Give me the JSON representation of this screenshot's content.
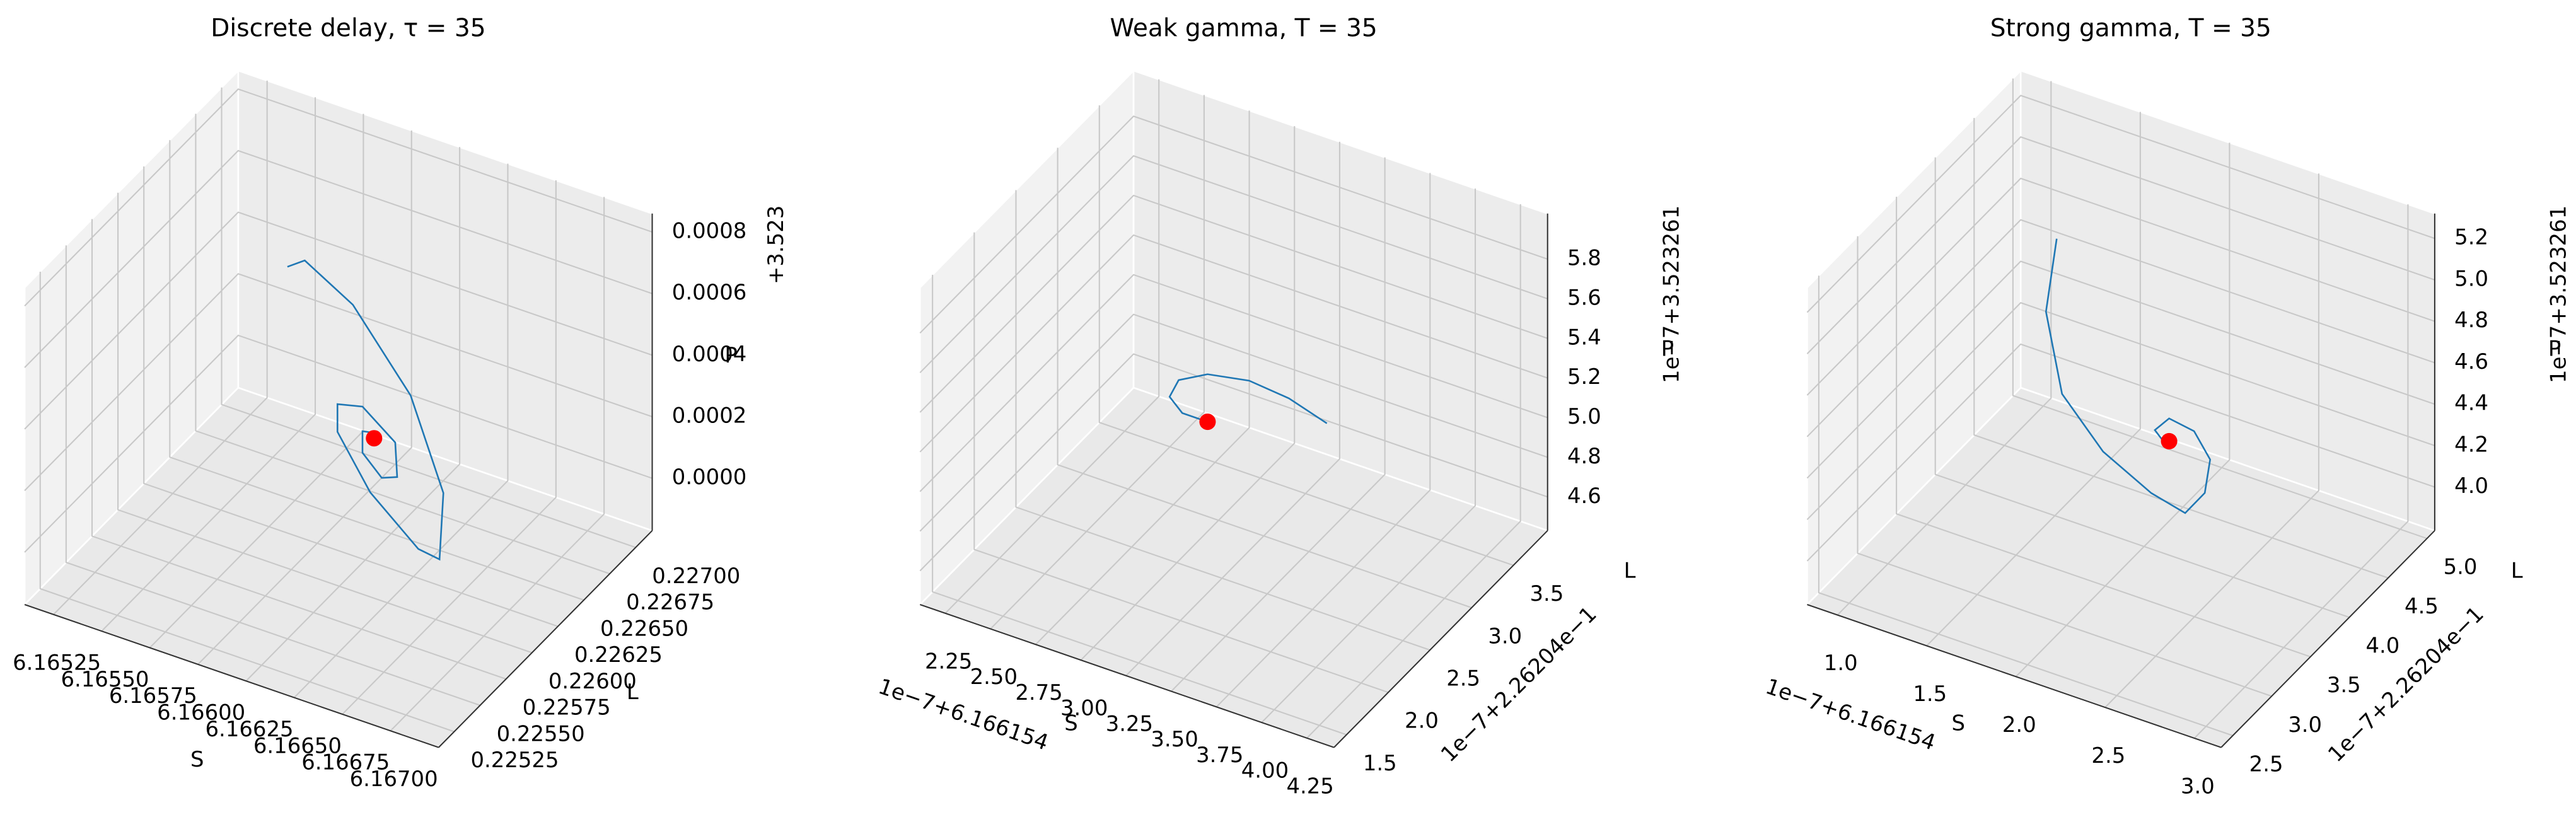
{
  "chart_data": [
    {
      "type": "line3d",
      "title": "Discrete delay, τ = 35",
      "xlabel": "S",
      "ylabel": "L",
      "zlabel": "P",
      "z_offset": "+3.523",
      "grid": true,
      "xlim": [
        6.1651,
        6.16725
      ],
      "ylim": [
        0.2251,
        0.22716
      ],
      "zlim": [
        -0.00017,
        0.00086
      ],
      "xticks": [
        6.16525,
        {
          "value": 6.1655,
          "label": "6.16550"
        },
        6.16575,
        {
          "value": 6.166,
          "label": "6.16600"
        },
        6.16625,
        {
          "value": 6.1665,
          "label": "6.16650"
        },
        6.16675,
        {
          "value": 6.167,
          "label": "6.16700"
        }
      ],
      "yticks": [
        0.22525,
        {
          "value": 0.2255,
          "label": "0.22550"
        },
        0.22575,
        {
          "value": 0.226,
          "label": "0.22600"
        },
        0.22625,
        {
          "value": 0.2265,
          "label": "0.22650"
        },
        0.22675,
        {
          "value": 0.227,
          "label": "0.22700"
        }
      ],
      "zticks": [
        {
          "value": 0,
          "label": "0.0000"
        },
        0.0002,
        0.0004,
        0.0006,
        0.0008
      ],
      "series": [
        {
          "color": "#1f77b4",
          "x": [
            6.16591,
            6.166,
            6.16625,
            6.16655,
            6.16672,
            6.1667,
            6.16659,
            6.16634,
            6.16617,
            6.16617,
            6.1663,
            6.16647,
            6.16648,
            6.1664,
            6.1663,
            6.1663,
            6.16638,
            6.16636
          ],
          "y": [
            0.22613,
            0.22613,
            0.22613,
            0.22613,
            0.22613,
            0.22613,
            0.22613,
            0.22613,
            0.22613,
            0.22613,
            0.22613,
            0.22613,
            0.22613,
            0.22613,
            0.22613,
            0.22613,
            0.22613,
            0.22613
          ],
          "z": [
            0.00075,
            0.00079,
            0.0007,
            0.00047,
            0.00019,
            -3e-05,
            -2e-05,
            0.00011,
            0.00027,
            0.00036,
            0.00038,
            0.0003,
            0.00019,
            0.00017,
            0.00023,
            0.0003,
            0.00031,
            0.00029
          ]
        }
      ],
      "point": {
        "color": "#ff0000",
        "x": 6.16636,
        "y": 0.22613,
        "z": 0.00029
      }
    },
    {
      "type": "line3d",
      "title": "Weak gamma, T = 35",
      "xlabel": "S",
      "ylabel": "L",
      "zlabel": "P",
      "x_offset": "1e−7+6.166154",
      "y_offset": "1e−7+2.26204e−1",
      "z_offset": "1e−7+3.523261",
      "grid": true,
      "xlim": [
        2.11,
        4.4
      ],
      "ylim": [
        1.35,
        3.91
      ],
      "zlim": [
        4.43,
        6.03
      ],
      "xticks": [
        2.25,
        {
          "value": 2.5,
          "label": "2.50"
        },
        2.75,
        {
          "value": 3,
          "label": "3.00"
        },
        3.25,
        {
          "value": 3.5,
          "label": "3.50"
        },
        3.75,
        {
          "value": 4,
          "label": "4.00"
        },
        4.25
      ],
      "yticks": [
        1.5,
        {
          "value": 2,
          "label": "2.0"
        },
        2.5,
        {
          "value": 3,
          "label": "3.0"
        },
        3.5
      ],
      "zticks": [
        4.6,
        4.8,
        {
          "value": 5,
          "label": "5.0"
        },
        5.2,
        5.4,
        5.6,
        5.8
      ],
      "series": [
        {
          "color": "#1f77b4",
          "x": [
            3.77,
            3.56,
            3.34,
            3.11,
            2.95,
            2.9,
            2.97,
            3.11
          ],
          "y": [
            2.63,
            2.63,
            2.63,
            2.63,
            2.63,
            2.63,
            2.63,
            2.63
          ],
          "z": [
            5.32,
            5.38,
            5.4,
            5.36,
            5.28,
            5.18,
            5.12,
            5.12
          ]
        }
      ],
      "point": {
        "color": "#ff0000",
        "x": 3.11,
        "y": 2.63,
        "z": 5.12
      }
    },
    {
      "type": "line3d",
      "title": "Strong gamma, T = 35",
      "xlabel": "S",
      "ylabel": "L",
      "zlabel": "P",
      "x_offset": "1e−7+6.166154",
      "y_offset": "1e−7+2.26204e−1",
      "z_offset": "1e−7+3.523261",
      "grid": true,
      "xlim": [
        0.83,
        3.15
      ],
      "ylim": [
        2.35,
        5.1
      ],
      "zlim": [
        3.79,
        5.32
      ],
      "xticks": [
        {
          "value": 1,
          "label": "1.0"
        },
        1.5,
        {
          "value": 2,
          "label": "2.0"
        },
        2.5,
        {
          "value": 3,
          "label": "3.0"
        }
      ],
      "yticks": [
        2.5,
        {
          "value": 3,
          "label": "3.0"
        },
        3.5,
        {
          "value": 4,
          "label": "4.0"
        },
        4.5,
        {
          "value": 5,
          "label": "5.0"
        }
      ],
      "zticks": [
        {
          "value": 4,
          "label": "4.0"
        },
        4.2,
        4.4,
        4.6,
        4.8,
        {
          "value": 5,
          "label": "5.0"
        },
        5.2
      ],
      "series": [
        {
          "color": "#1f77b4",
          "x": [
            1.63,
            1.57,
            1.66,
            1.89,
            2.16,
            2.35,
            2.46,
            2.49,
            2.4,
            2.26,
            2.18,
            2.24,
            2.26
          ],
          "y": [
            3.725,
            3.725,
            3.725,
            3.725,
            3.725,
            3.725,
            3.725,
            3.725,
            3.725,
            3.725,
            3.725,
            3.725,
            3.725
          ],
          "z": [
            5.27,
            4.9,
            4.53,
            4.32,
            4.2,
            4.16,
            4.29,
            4.46,
            4.57,
            4.59,
            4.51,
            4.46,
            4.48
          ]
        }
      ],
      "point": {
        "color": "#ff0000",
        "x": 2.26,
        "y": 3.725,
        "z": 4.48
      }
    }
  ]
}
